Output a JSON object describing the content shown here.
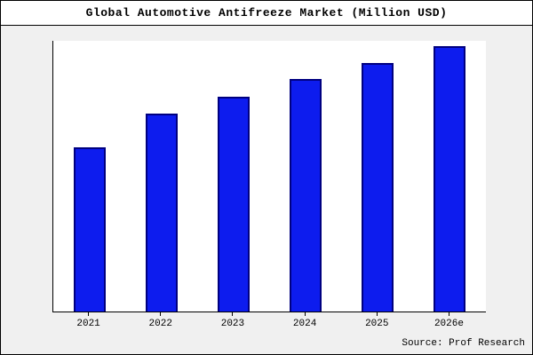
{
  "title": "Global Automotive Antifreeze Market (Million USD)",
  "source": "Source: Prof Research",
  "colors": {
    "bar_fill": "#0d1cee",
    "bar_edge": "#000080",
    "figure_bg": "#f0f0f0",
    "plot_bg": "#ffffff",
    "frame_border": "#000000"
  },
  "chart_data": {
    "type": "bar",
    "categories": [
      "2021",
      "2022",
      "2023",
      "2024",
      "2025",
      "2026e"
    ],
    "values": [
      62,
      74.5,
      81,
      87.5,
      93.5,
      100
    ],
    "title": "Global Automotive Antifreeze Market (Million USD)",
    "xlabel": "",
    "ylabel": "",
    "ylim": [
      0,
      102
    ],
    "grid": false,
    "legend": false,
    "annotation": "Source: Prof Research",
    "note": "No y-axis tick labels shown; values are relative heights with max bar = 100"
  }
}
